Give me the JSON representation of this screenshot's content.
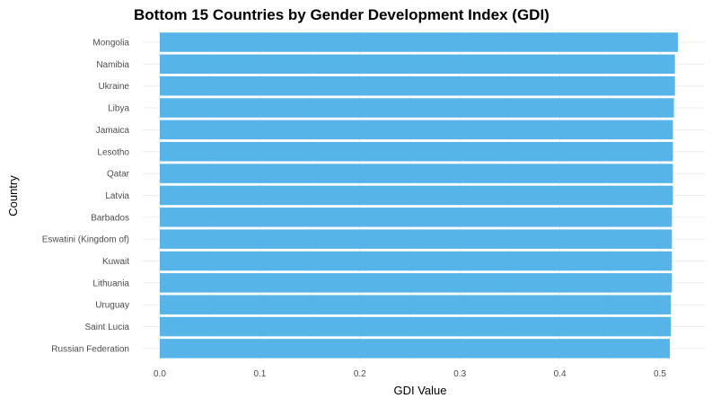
{
  "chart_data": {
    "type": "bar",
    "orientation": "horizontal",
    "title": "Bottom 15 Countries by Gender Development Index (GDI)",
    "xlabel": "GDI Value",
    "ylabel": "Country",
    "xlim": [
      0,
      0.52
    ],
    "x_ticks": [
      "0.0",
      "0.1",
      "0.2",
      "0.3",
      "0.4",
      "0.5"
    ],
    "grid": true,
    "bar_color": "#56B4E9",
    "categories": [
      "Mongolia",
      "Namibia",
      "Ukraine",
      "Libya",
      "Jamaica",
      "Lesotho",
      "Qatar",
      "Latvia",
      "Barbados",
      "Eswatini (Kingdom of)",
      "Kuwait",
      "Lithuania",
      "Uruguay",
      "Saint Lucia",
      "Russian Federation"
    ],
    "values": [
      0.518,
      0.515,
      0.515,
      0.514,
      0.513,
      0.513,
      0.513,
      0.513,
      0.512,
      0.512,
      0.512,
      0.512,
      0.511,
      0.511,
      0.51
    ]
  }
}
